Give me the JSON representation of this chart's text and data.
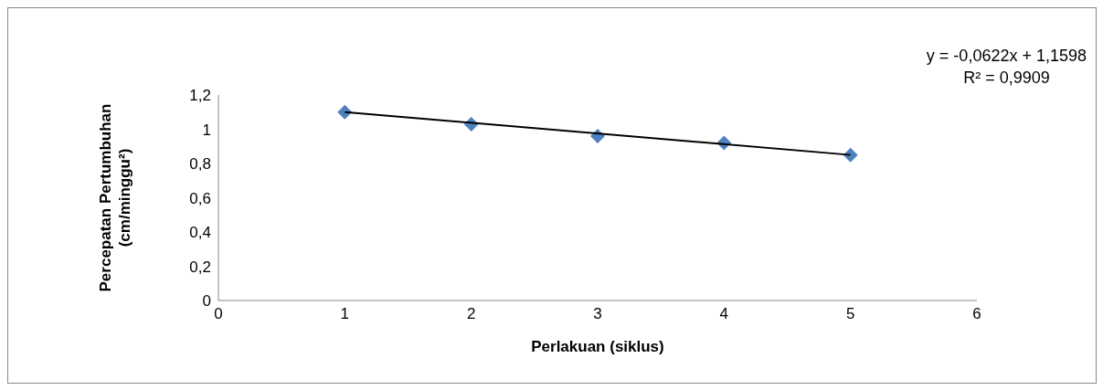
{
  "chart_data": {
    "type": "scatter",
    "xlabel": "Perlakuan (siklus)",
    "ylabel": "Percepatan Pertumbuhan (cm/minggu²)",
    "x": [
      1,
      2,
      3,
      4,
      5
    ],
    "series": [
      {
        "color": "#4f81bd",
        "marker": "diamond",
        "values": [
          1.1,
          1.03,
          0.96,
          0.92,
          0.85
        ]
      },
      {
        "type": "line",
        "color": "#000000",
        "marker": "none",
        "x": [
          1,
          5
        ],
        "values": [
          1.1,
          0.85
        ]
      }
    ],
    "xlim": [
      0,
      6
    ],
    "xticks": [
      0,
      1,
      2,
      3,
      4,
      5,
      6
    ],
    "ylim": [
      0,
      1.2
    ],
    "yticks": [
      0,
      {
        "value": 0.2,
        "label": "0,2"
      },
      {
        "value": 0.4,
        "label": "0,4"
      },
      {
        "value": 0.6,
        "label": "0,6"
      },
      {
        "value": 0.8,
        "label": "0,8"
      },
      1,
      {
        "value": 1.2,
        "label": "1,2"
      }
    ],
    "grid": false,
    "legend": false,
    "annotations": [
      "y = -0,0622x + 1,1598",
      "R² = 0,9909"
    ]
  }
}
